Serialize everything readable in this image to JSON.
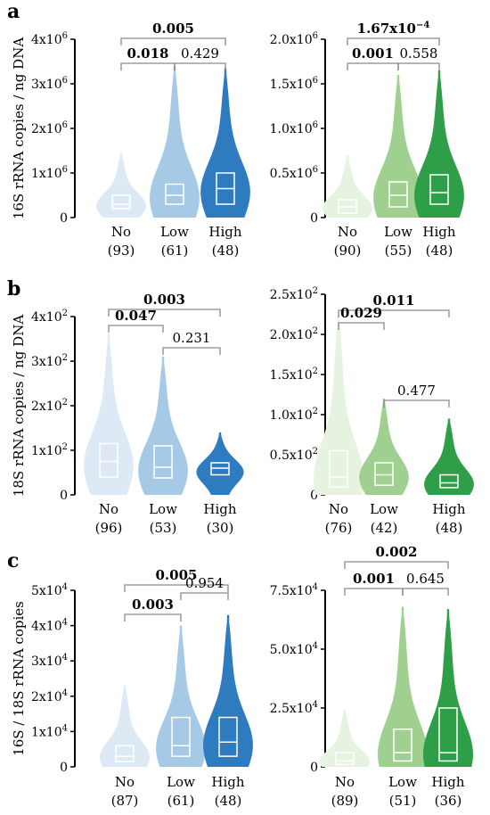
{
  "colors": {
    "blue": [
      "#dde9f5",
      "#a6c9e6",
      "#2e7bbf"
    ],
    "green": [
      "#e6f3e0",
      "#9fd08f",
      "#2f9e48"
    ],
    "axis": "#000000",
    "bracket": "#8a8a8a"
  },
  "chart_data": [
    {
      "type": "violin",
      "panel": "a",
      "palette": "blue",
      "ylabel": "16S rRNA copies / ng DNA",
      "ylim": [
        0,
        4000000
      ],
      "yticks": [
        {
          "v": 0,
          "m": "0",
          "e": ""
        },
        {
          "v": 1000000,
          "m": "1x10",
          "e": "6"
        },
        {
          "v": 2000000,
          "m": "2x10",
          "e": "6"
        },
        {
          "v": 3000000,
          "m": "3x10",
          "e": "6"
        },
        {
          "v": 4000000,
          "m": "4x10",
          "e": "6"
        }
      ],
      "groups": [
        {
          "name": "No",
          "n": "(93)",
          "median": 300000,
          "q1": 200000,
          "q3": 500000,
          "max": 1450000
        },
        {
          "name": "Low",
          "n": "(61)",
          "median": 500000,
          "q1": 300000,
          "q3": 750000,
          "max": 3400000
        },
        {
          "name": "High",
          "n": "(48)",
          "median": 650000,
          "q1": 300000,
          "q3": 1000000,
          "max": 3350000
        }
      ],
      "brackets": [
        {
          "from": 0,
          "to": 2,
          "p": "0.005",
          "bold": true,
          "level": 2
        },
        {
          "from": 0,
          "to": 1,
          "p": "0.018",
          "bold": true,
          "level": 1
        },
        {
          "from": 1,
          "to": 2,
          "p": "0.429",
          "bold": false,
          "level": 1
        }
      ]
    },
    {
      "type": "violin",
      "panel": "",
      "palette": "green",
      "ylabel": "",
      "ylim": [
        0,
        2000000
      ],
      "yticks": [
        {
          "v": 0,
          "m": "0",
          "e": ""
        },
        {
          "v": 500000,
          "m": "0.5x10",
          "e": "6"
        },
        {
          "v": 1000000,
          "m": "1.0x10",
          "e": "6"
        },
        {
          "v": 1500000,
          "m": "1.5x10",
          "e": "6"
        },
        {
          "v": 2000000,
          "m": "2.0x10",
          "e": "6"
        }
      ],
      "groups": [
        {
          "name": "No",
          "n": "(90)",
          "median": 120000,
          "q1": 50000,
          "q3": 200000,
          "max": 700000
        },
        {
          "name": "Low",
          "n": "(55)",
          "median": 250000,
          "q1": 120000,
          "q3": 400000,
          "max": 1600000
        },
        {
          "name": "High",
          "n": "(48)",
          "median": 280000,
          "q1": 150000,
          "q3": 480000,
          "max": 1650000
        }
      ],
      "brackets": [
        {
          "from": 0,
          "to": 2,
          "p": "1.67x10",
          "pexp": "−4",
          "bold": true,
          "level": 2
        },
        {
          "from": 0,
          "to": 1,
          "p": "0.001",
          "bold": true,
          "level": 1
        },
        {
          "from": 1,
          "to": 2,
          "p": "0.558",
          "bold": false,
          "level": 1
        }
      ]
    },
    {
      "type": "violin",
      "panel": "b",
      "palette": "blue",
      "ylabel": "18S rRNA copies / ng DNA",
      "ylim": [
        0,
        400
      ],
      "yticks": [
        {
          "v": 0,
          "m": "0",
          "e": ""
        },
        {
          "v": 100,
          "m": "1x10",
          "e": "2"
        },
        {
          "v": 200,
          "m": "2x10",
          "e": "2"
        },
        {
          "v": 300,
          "m": "3x10",
          "e": "2"
        },
        {
          "v": 400,
          "m": "4x10",
          "e": "2"
        }
      ],
      "groups": [
        {
          "name": "No",
          "n": "(96)",
          "median": 75,
          "q1": 40,
          "q3": 115,
          "max": 360
        },
        {
          "name": "Low",
          "n": "(53)",
          "median": 62,
          "q1": 38,
          "q3": 110,
          "max": 310
        },
        {
          "name": "High",
          "n": "(30)",
          "median": 60,
          "q1": 45,
          "q3": 72,
          "max": 140
        }
      ],
      "brackets": [
        {
          "from": 0,
          "to": 2,
          "p": "0.003",
          "bold": true,
          "level": 3
        },
        {
          "from": 0,
          "to": 1,
          "p": "0.047",
          "bold": true,
          "level": 2
        },
        {
          "from": 1,
          "to": 2,
          "p": "0.231",
          "bold": false,
          "level": 1
        }
      ]
    },
    {
      "type": "violin",
      "panel": "",
      "palette": "green",
      "ylabel": "",
      "ylim": [
        0,
        250
      ],
      "yticks": [
        {
          "v": 0,
          "m": "0",
          "e": ""
        },
        {
          "v": 50,
          "m": "0.5x10",
          "e": "2"
        },
        {
          "v": 100,
          "m": "1.0x10",
          "e": "2"
        },
        {
          "v": 150,
          "m": "1.5x10",
          "e": "2"
        },
        {
          "v": 200,
          "m": "2.0x10",
          "e": "2"
        },
        {
          "v": 250,
          "m": "2.5x10",
          "e": "2"
        }
      ],
      "groups": [
        {
          "name": "No",
          "n": "(76)",
          "median": 22,
          "q1": 10,
          "q3": 55,
          "max": 225
        },
        {
          "name": "Low",
          "n": "(42)",
          "median": 25,
          "q1": 12,
          "q3": 40,
          "max": 120
        },
        {
          "name": "High",
          "n": "(48)",
          "median": 15,
          "q1": 9,
          "q3": 25,
          "max": 95
        }
      ],
      "brackets": [
        {
          "from": 0,
          "to": 2,
          "p": "0.011",
          "bold": true,
          "level": 3
        },
        {
          "from": 0,
          "to": 1,
          "p": "0.029",
          "bold": true,
          "level": 2
        },
        {
          "from": 1,
          "to": 2,
          "p": "0.477",
          "bold": false,
          "level": 1
        }
      ]
    },
    {
      "type": "violin",
      "panel": "c",
      "palette": "blue",
      "ylabel": "16S / 18S rRNA copies",
      "ylim": [
        0,
        50000
      ],
      "yticks": [
        {
          "v": 0,
          "m": "0",
          "e": ""
        },
        {
          "v": 10000,
          "m": "1x10",
          "e": "4"
        },
        {
          "v": 20000,
          "m": "2x10",
          "e": "4"
        },
        {
          "v": 30000,
          "m": "3x10",
          "e": "4"
        },
        {
          "v": 40000,
          "m": "4x10",
          "e": "4"
        },
        {
          "v": 50000,
          "m": "5x10",
          "e": "4"
        }
      ],
      "groups": [
        {
          "name": "No",
          "n": "(87)",
          "median": 3000,
          "q1": 1500,
          "q3": 6000,
          "max": 23000
        },
        {
          "name": "Low",
          "n": "(61)",
          "median": 6000,
          "q1": 3000,
          "q3": 14000,
          "max": 40000
        },
        {
          "name": "High",
          "n": "(48)",
          "median": 7000,
          "q1": 3000,
          "q3": 14000,
          "max": 43000
        }
      ],
      "brackets": [
        {
          "from": 0,
          "to": 2,
          "p": "0.005",
          "bold": true,
          "level": 3
        },
        {
          "from": 0,
          "to": 1,
          "p": "0.003",
          "bold": true,
          "level": 2
        },
        {
          "from": 1,
          "to": 2,
          "p": "0.954",
          "bold": false,
          "level": 1
        }
      ]
    },
    {
      "type": "violin",
      "panel": "",
      "palette": "green",
      "ylabel": "",
      "ylim": [
        0,
        75000
      ],
      "yticks": [
        {
          "v": 0,
          "m": "0",
          "e": ""
        },
        {
          "v": 25000,
          "m": "2.5x10",
          "e": "4"
        },
        {
          "v": 50000,
          "m": "5.0x10",
          "e": "4"
        },
        {
          "v": 75000,
          "m": "7.5x10",
          "e": "4"
        }
      ],
      "groups": [
        {
          "name": "No",
          "n": "(89)",
          "median": 2500,
          "q1": 1000,
          "q3": 6000,
          "max": 24000
        },
        {
          "name": "Low",
          "n": "(51)",
          "median": 6000,
          "q1": 2500,
          "q3": 16000,
          "max": 68000
        },
        {
          "name": "High",
          "n": "(36)",
          "median": 6000,
          "q1": 2500,
          "q3": 25000,
          "max": 67000
        }
      ],
      "brackets": [
        {
          "from": 0,
          "to": 2,
          "p": "0.002",
          "bold": true,
          "level": 2
        },
        {
          "from": 0,
          "to": 1,
          "p": "0.001",
          "bold": true,
          "level": 1
        },
        {
          "from": 1,
          "to": 2,
          "p": "0.645",
          "bold": false,
          "level": 1
        }
      ]
    }
  ]
}
